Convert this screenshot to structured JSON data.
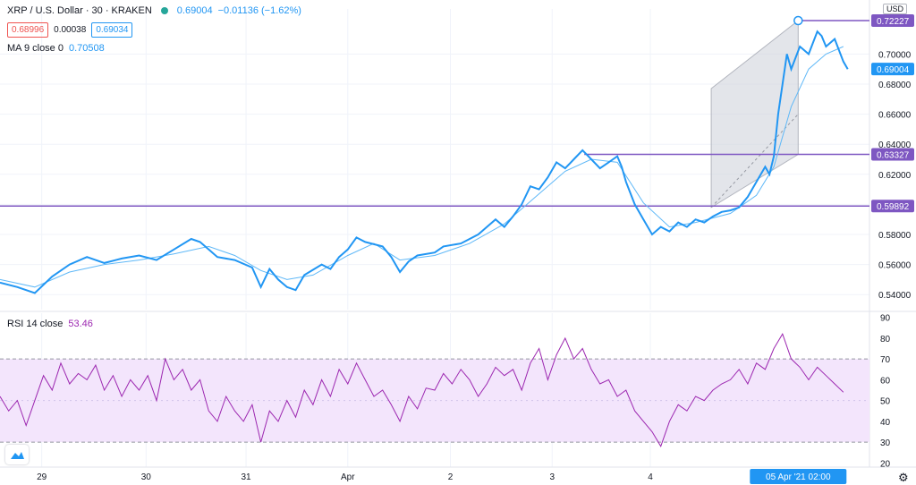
{
  "header": {
    "symbol": "XRP / U.S. Dollar · 30 · KRAKEN",
    "status_icon": "market-open-dot-icon",
    "last": "0.69004",
    "change": "−0.01136 (−1.62%)",
    "bid": "0.68996",
    "spread": "0.00038",
    "ask": "0.69034"
  },
  "ma": {
    "label": "MA 9 close 0",
    "value": "0.70508"
  },
  "rsi": {
    "label": "RSI 14 close",
    "value": "53.46"
  },
  "currency": "USD",
  "price_axis": {
    "ticks": [
      "0.70000",
      "0.68000",
      "0.66000",
      "0.64000",
      "0.62000",
      "0.60000",
      "0.58000",
      "0.56000",
      "0.54000"
    ],
    "tick_values": [
      0.7,
      0.68,
      0.66,
      0.64,
      0.62,
      0.6,
      0.58,
      0.56,
      0.54
    ],
    "labels": [
      {
        "text": "0.72227",
        "value": 0.72227,
        "color": "#7e57c2"
      },
      {
        "text": "0.69004",
        "value": 0.69004,
        "color": "#2196f3"
      },
      {
        "text": "0.63327",
        "value": 0.63327,
        "color": "#7e57c2"
      },
      {
        "text": "0.59892",
        "value": 0.59892,
        "color": "#7e57c2"
      }
    ]
  },
  "rsi_axis": {
    "ticks": [
      "90",
      "80",
      "70",
      "60",
      "50",
      "40",
      "30",
      "20"
    ],
    "tick_values": [
      90,
      80,
      70,
      60,
      50,
      40,
      30,
      20
    ]
  },
  "time_axis": {
    "labels": [
      {
        "text": "29",
        "t": 0.048
      },
      {
        "text": "30",
        "t": 0.168
      },
      {
        "text": "31",
        "t": 0.283
      },
      {
        "text": "Apr",
        "t": 0.4
      },
      {
        "text": "2",
        "t": 0.518
      },
      {
        "text": "3",
        "t": 0.635
      },
      {
        "text": "4",
        "t": 0.748
      }
    ],
    "crosshair_label": "05 Apr '21   02:00"
  },
  "colors": {
    "price": "#2196f3",
    "ma": "#5fb8f7",
    "hline": "#7e57c2",
    "rsi": "#9c27b0",
    "rsi_band": "#f3e5fc"
  },
  "chart_data": {
    "type": "line",
    "series": [
      {
        "name": "XRP / U.S. Dollar",
        "points": [
          [
            0.0,
            0.548
          ],
          [
            0.02,
            0.545
          ],
          [
            0.04,
            0.541
          ],
          [
            0.06,
            0.552
          ],
          [
            0.08,
            0.56
          ],
          [
            0.1,
            0.565
          ],
          [
            0.12,
            0.561
          ],
          [
            0.14,
            0.564
          ],
          [
            0.16,
            0.566
          ],
          [
            0.18,
            0.563
          ],
          [
            0.2,
            0.57
          ],
          [
            0.22,
            0.577
          ],
          [
            0.23,
            0.575
          ],
          [
            0.24,
            0.57
          ],
          [
            0.25,
            0.565
          ],
          [
            0.27,
            0.563
          ],
          [
            0.29,
            0.558
          ],
          [
            0.3,
            0.545
          ],
          [
            0.31,
            0.557
          ],
          [
            0.32,
            0.55
          ],
          [
            0.33,
            0.545
          ],
          [
            0.34,
            0.543
          ],
          [
            0.35,
            0.553
          ],
          [
            0.37,
            0.56
          ],
          [
            0.38,
            0.557
          ],
          [
            0.39,
            0.565
          ],
          [
            0.4,
            0.57
          ],
          [
            0.41,
            0.578
          ],
          [
            0.42,
            0.575
          ],
          [
            0.44,
            0.572
          ],
          [
            0.45,
            0.565
          ],
          [
            0.46,
            0.555
          ],
          [
            0.47,
            0.562
          ],
          [
            0.48,
            0.566
          ],
          [
            0.5,
            0.568
          ],
          [
            0.51,
            0.572
          ],
          [
            0.53,
            0.574
          ],
          [
            0.55,
            0.58
          ],
          [
            0.57,
            0.59
          ],
          [
            0.58,
            0.585
          ],
          [
            0.59,
            0.592
          ],
          [
            0.6,
            0.6
          ],
          [
            0.61,
            0.612
          ],
          [
            0.62,
            0.61
          ],
          [
            0.63,
            0.618
          ],
          [
            0.64,
            0.628
          ],
          [
            0.65,
            0.624
          ],
          [
            0.66,
            0.63
          ],
          [
            0.67,
            0.636
          ],
          [
            0.68,
            0.63
          ],
          [
            0.69,
            0.624
          ],
          [
            0.7,
            0.628
          ],
          [
            0.71,
            0.632
          ],
          [
            0.715,
            0.625
          ],
          [
            0.72,
            0.615
          ],
          [
            0.73,
            0.6
          ],
          [
            0.74,
            0.59
          ],
          [
            0.75,
            0.58
          ],
          [
            0.76,
            0.585
          ],
          [
            0.77,
            0.582
          ],
          [
            0.78,
            0.588
          ],
          [
            0.79,
            0.585
          ],
          [
            0.8,
            0.59
          ],
          [
            0.81,
            0.588
          ],
          [
            0.82,
            0.592
          ],
          [
            0.83,
            0.595
          ],
          [
            0.84,
            0.596
          ],
          [
            0.85,
            0.598
          ],
          [
            0.86,
            0.605
          ],
          [
            0.87,
            0.615
          ],
          [
            0.88,
            0.625
          ],
          [
            0.885,
            0.62
          ],
          [
            0.89,
            0.632
          ],
          [
            0.895,
            0.66
          ],
          [
            0.9,
            0.68
          ],
          [
            0.905,
            0.7
          ],
          [
            0.91,
            0.69
          ],
          [
            0.92,
            0.705
          ],
          [
            0.93,
            0.7
          ],
          [
            0.94,
            0.715
          ],
          [
            0.945,
            0.712
          ],
          [
            0.95,
            0.705
          ],
          [
            0.96,
            0.71
          ],
          [
            0.97,
            0.695
          ],
          [
            0.975,
            0.69
          ]
        ]
      },
      {
        "name": "MA 9 close 0",
        "points": [
          [
            0.0,
            0.55
          ],
          [
            0.04,
            0.545
          ],
          [
            0.08,
            0.555
          ],
          [
            0.12,
            0.56
          ],
          [
            0.16,
            0.563
          ],
          [
            0.2,
            0.567
          ],
          [
            0.24,
            0.572
          ],
          [
            0.27,
            0.566
          ],
          [
            0.3,
            0.556
          ],
          [
            0.33,
            0.55
          ],
          [
            0.36,
            0.553
          ],
          [
            0.4,
            0.566
          ],
          [
            0.43,
            0.574
          ],
          [
            0.46,
            0.563
          ],
          [
            0.5,
            0.566
          ],
          [
            0.54,
            0.574
          ],
          [
            0.58,
            0.587
          ],
          [
            0.62,
            0.607
          ],
          [
            0.65,
            0.622
          ],
          [
            0.68,
            0.63
          ],
          [
            0.71,
            0.628
          ],
          [
            0.74,
            0.601
          ],
          [
            0.77,
            0.585
          ],
          [
            0.8,
            0.588
          ],
          [
            0.84,
            0.594
          ],
          [
            0.87,
            0.606
          ],
          [
            0.89,
            0.625
          ],
          [
            0.91,
            0.665
          ],
          [
            0.93,
            0.69
          ],
          [
            0.95,
            0.7
          ],
          [
            0.97,
            0.705
          ]
        ]
      },
      {
        "name": "RSI 14 close",
        "points": [
          [
            0.0,
            52
          ],
          [
            0.01,
            45
          ],
          [
            0.02,
            50
          ],
          [
            0.03,
            38
          ],
          [
            0.04,
            50
          ],
          [
            0.05,
            62
          ],
          [
            0.06,
            55
          ],
          [
            0.07,
            68
          ],
          [
            0.08,
            58
          ],
          [
            0.09,
            63
          ],
          [
            0.1,
            60
          ],
          [
            0.11,
            67
          ],
          [
            0.12,
            55
          ],
          [
            0.13,
            62
          ],
          [
            0.14,
            52
          ],
          [
            0.15,
            60
          ],
          [
            0.16,
            55
          ],
          [
            0.17,
            62
          ],
          [
            0.18,
            50
          ],
          [
            0.19,
            70
          ],
          [
            0.2,
            60
          ],
          [
            0.21,
            65
          ],
          [
            0.22,
            55
          ],
          [
            0.23,
            60
          ],
          [
            0.24,
            45
          ],
          [
            0.25,
            40
          ],
          [
            0.26,
            52
          ],
          [
            0.27,
            45
          ],
          [
            0.28,
            40
          ],
          [
            0.29,
            48
          ],
          [
            0.3,
            30
          ],
          [
            0.31,
            45
          ],
          [
            0.32,
            40
          ],
          [
            0.33,
            50
          ],
          [
            0.34,
            42
          ],
          [
            0.35,
            55
          ],
          [
            0.36,
            48
          ],
          [
            0.37,
            60
          ],
          [
            0.38,
            52
          ],
          [
            0.39,
            65
          ],
          [
            0.4,
            58
          ],
          [
            0.41,
            68
          ],
          [
            0.42,
            60
          ],
          [
            0.43,
            52
          ],
          [
            0.44,
            55
          ],
          [
            0.45,
            48
          ],
          [
            0.46,
            40
          ],
          [
            0.47,
            52
          ],
          [
            0.48,
            46
          ],
          [
            0.49,
            56
          ],
          [
            0.5,
            55
          ],
          [
            0.51,
            63
          ],
          [
            0.52,
            58
          ],
          [
            0.53,
            65
          ],
          [
            0.54,
            60
          ],
          [
            0.55,
            52
          ],
          [
            0.56,
            58
          ],
          [
            0.57,
            66
          ],
          [
            0.58,
            62
          ],
          [
            0.59,
            65
          ],
          [
            0.6,
            55
          ],
          [
            0.61,
            68
          ],
          [
            0.62,
            75
          ],
          [
            0.63,
            60
          ],
          [
            0.64,
            72
          ],
          [
            0.65,
            80
          ],
          [
            0.66,
            70
          ],
          [
            0.67,
            75
          ],
          [
            0.68,
            65
          ],
          [
            0.69,
            58
          ],
          [
            0.7,
            60
          ],
          [
            0.71,
            52
          ],
          [
            0.72,
            55
          ],
          [
            0.73,
            45
          ],
          [
            0.74,
            40
          ],
          [
            0.75,
            35
          ],
          [
            0.76,
            28
          ],
          [
            0.77,
            40
          ],
          [
            0.78,
            48
          ],
          [
            0.79,
            45
          ],
          [
            0.8,
            52
          ],
          [
            0.81,
            50
          ],
          [
            0.82,
            55
          ],
          [
            0.83,
            58
          ],
          [
            0.84,
            60
          ],
          [
            0.85,
            65
          ],
          [
            0.86,
            58
          ],
          [
            0.87,
            68
          ],
          [
            0.88,
            65
          ],
          [
            0.89,
            75
          ],
          [
            0.9,
            82
          ],
          [
            0.91,
            70
          ],
          [
            0.92,
            66
          ],
          [
            0.93,
            60
          ],
          [
            0.94,
            66
          ],
          [
            0.95,
            62
          ],
          [
            0.96,
            58
          ],
          [
            0.97,
            54
          ]
        ]
      }
    ],
    "hlines": [
      0.72227,
      0.63327,
      0.59892
    ],
    "rsi_band": [
      30,
      70
    ],
    "ylim_price": [
      0.53,
      0.73
    ],
    "ylim_rsi": [
      18,
      92
    ],
    "grid": true
  }
}
